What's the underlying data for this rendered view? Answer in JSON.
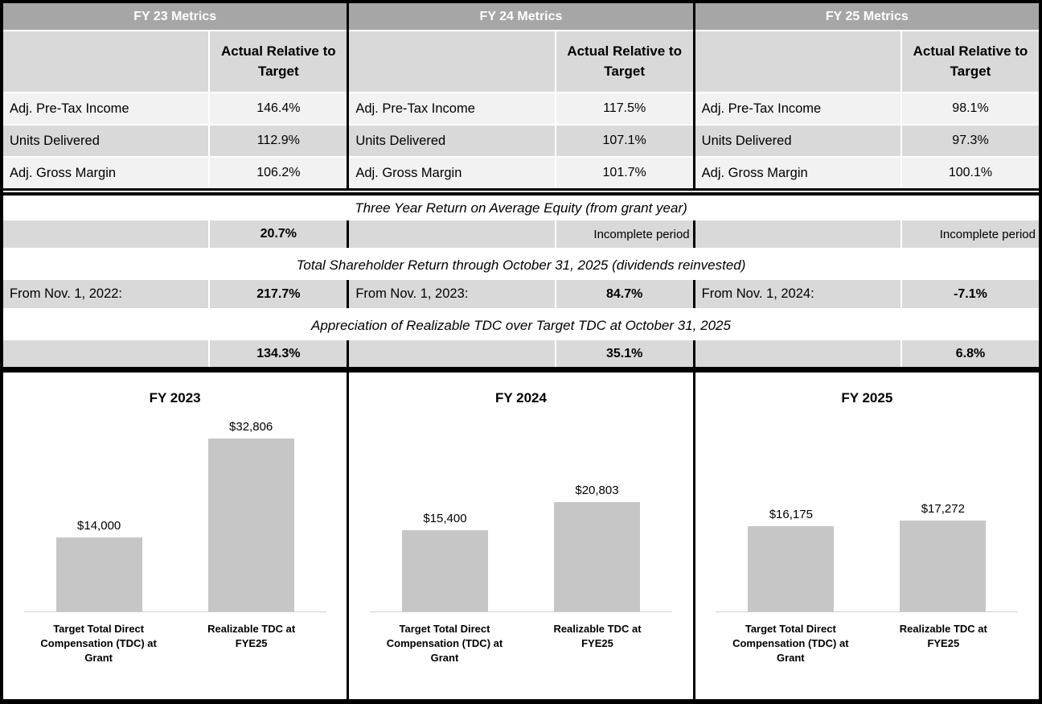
{
  "groups": [
    {
      "header": "FY 23 Metrics",
      "subheader": "Actual Relative to Target",
      "metrics": [
        {
          "label": "Adj. Pre-Tax Income",
          "value": "146.4%"
        },
        {
          "label": "Units Delivered",
          "value": "112.9%"
        },
        {
          "label": "Adj. Gross Margin",
          "value": "106.2%"
        }
      ],
      "roe_value": "20.7%",
      "tsr_label": "From Nov. 1, 2022:",
      "tsr_value": "217.7%",
      "tdc_value": "134.3%"
    },
    {
      "header": "FY 24 Metrics",
      "subheader": "Actual Relative to Target",
      "metrics": [
        {
          "label": "Adj. Pre-Tax Income",
          "value": "117.5%"
        },
        {
          "label": "Units Delivered",
          "value": "107.1%"
        },
        {
          "label": "Adj. Gross Margin",
          "value": "101.7%"
        }
      ],
      "roe_value": "Incomplete period",
      "tsr_label": "From Nov. 1, 2023:",
      "tsr_value": "84.7%",
      "tdc_value": "35.1%"
    },
    {
      "header": "FY 25 Metrics",
      "subheader": "Actual Relative to Target",
      "metrics": [
        {
          "label": "Adj. Pre-Tax Income",
          "value": "98.1%"
        },
        {
          "label": "Units Delivered",
          "value": "97.3%"
        },
        {
          "label": "Adj. Gross Margin",
          "value": "100.1%"
        }
      ],
      "roe_value": "Incomplete period",
      "tsr_label": "From Nov. 1, 2024:",
      "tsr_value": "-7.1%",
      "tdc_value": "6.8%"
    }
  ],
  "sections": {
    "roe_title": "Three Year Return on Average Equity (from grant year)",
    "tsr_title": "Total Shareholder Return through October 31, 2025 (dividends reinvested)",
    "tdc_title": "Appreciation of Realizable TDC over Target TDC at October 31, 2025"
  },
  "colors": {
    "header_bg": "#a6a6a6",
    "row_light": "#f2f2f2",
    "row_mid": "#d9d9d9",
    "bar_fill": "#c6c6c6",
    "border": "#000000"
  },
  "chart_data": [
    {
      "type": "bar",
      "title": "FY 2023",
      "categories": [
        "Target Total Direct Compensation (TDC) at Grant",
        "Realizable TDC at FYE25"
      ],
      "values": [
        14000,
        32806
      ],
      "data_labels": [
        "$14,000",
        "$32,806"
      ],
      "xlabel": "",
      "ylabel": "",
      "ylim": [
        0,
        33000
      ],
      "grid": false,
      "legend": false
    },
    {
      "type": "bar",
      "title": "FY 2024",
      "categories": [
        "Target Total Direct Compensation (TDC) at Grant",
        "Realizable TDC at FYE25"
      ],
      "values": [
        15400,
        20803
      ],
      "data_labels": [
        "$15,400",
        "$20,803"
      ],
      "xlabel": "",
      "ylabel": "",
      "ylim": [
        0,
        33000
      ],
      "grid": false,
      "legend": false
    },
    {
      "type": "bar",
      "title": "FY 2025",
      "categories": [
        "Target Total Direct Compensation (TDC) at Grant",
        "Realizable TDC at FYE25"
      ],
      "values": [
        16175,
        17272
      ],
      "data_labels": [
        "$16,175",
        "$17,272"
      ],
      "xlabel": "",
      "ylabel": "",
      "ylim": [
        0,
        33000
      ],
      "grid": false,
      "legend": false
    }
  ]
}
